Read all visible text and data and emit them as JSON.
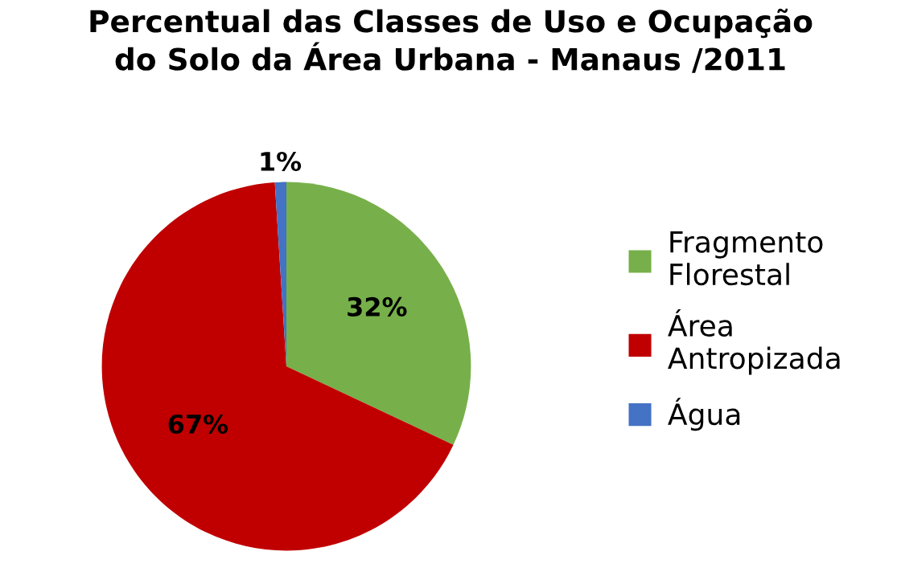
{
  "chart_data": {
    "type": "pie",
    "title": "Percentual das Classes de Uso e Ocupação\ndo Solo da Área Urbana - Manaus /2011",
    "categories": [
      "Fragmento Florestal",
      "Área Antropizada",
      "Água"
    ],
    "values": [
      32,
      67,
      1
    ],
    "colors": [
      "#77b04a",
      "#c00000",
      "#4472c4"
    ],
    "value_labels": [
      "32%",
      "67%",
      "1%"
    ],
    "legend": "right"
  }
}
